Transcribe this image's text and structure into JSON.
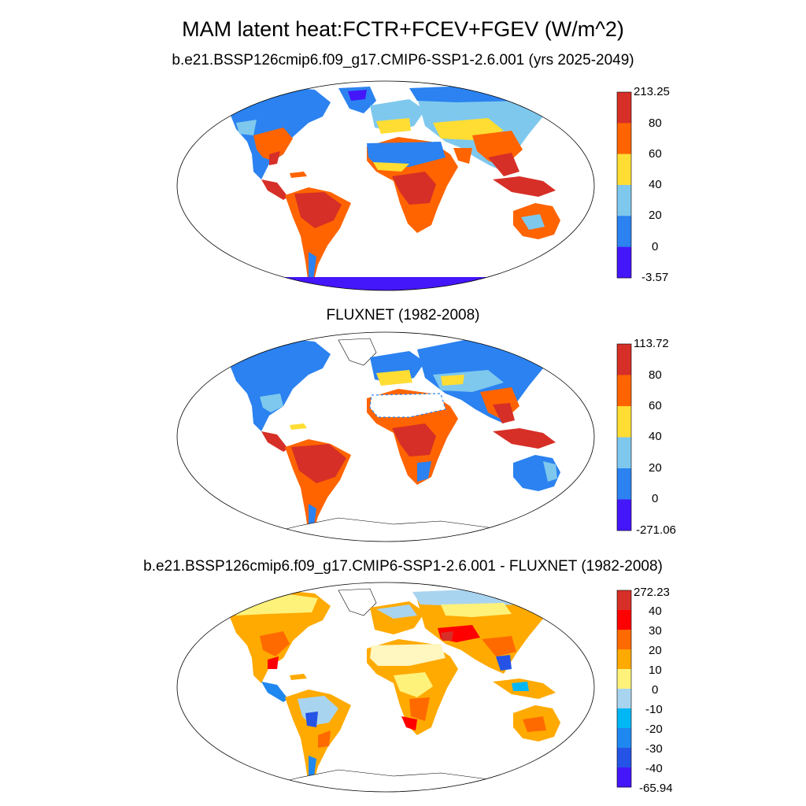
{
  "title": "MAM latent heat:FCTR+FCEV+FGEV (W/m^2)",
  "panels": [
    {
      "subtitle": "b.e21.BSSP126cmip6.f09_g17.CMIP6-SSP1-2.6.001 (yrs 2025-2049)",
      "colorbar": {
        "labels": [
          "213.25",
          "80",
          "60",
          "40",
          "20",
          "0",
          "-3.57"
        ],
        "colors": [
          "#d62f27",
          "#ff6400",
          "#ffdd33",
          "#7ec8ee",
          "#2b82f0",
          "#4416fa"
        ]
      }
    },
    {
      "subtitle": "FLUXNET (1982-2008)",
      "colorbar": {
        "labels": [
          "113.72",
          "80",
          "60",
          "40",
          "20",
          "0",
          "-271.06"
        ],
        "colors": [
          "#d62f27",
          "#ff6400",
          "#ffdd33",
          "#7ec8ee",
          "#2b82f0",
          "#4416fa"
        ]
      }
    },
    {
      "subtitle": "b.e21.BSSP126cmip6.f09_g17.CMIP6-SSP1-2.6.001 - FLUXNET (1982-2008)",
      "colorbar": {
        "labels": [
          "272.23",
          "40",
          "30",
          "20",
          "10",
          "0",
          "-10",
          "-20",
          "-30",
          "-40",
          "-65.94"
        ],
        "colors": [
          "#d62f27",
          "#ff0000",
          "#ff6a00",
          "#ffaa00",
          "#fff27a",
          "#a9d4f0",
          "#00b7f5",
          "#1f88f0",
          "#2553e6",
          "#4416fa"
        ]
      }
    }
  ]
}
